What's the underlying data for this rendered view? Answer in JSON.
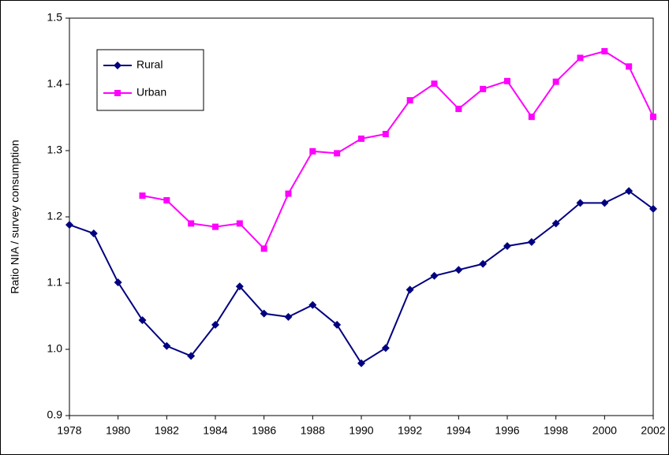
{
  "chart_data": {
    "type": "line",
    "ylabel": "Ratio NIA / survey consumption",
    "x": [
      1978,
      1979,
      1980,
      1981,
      1982,
      1983,
      1984,
      1985,
      1986,
      1987,
      1988,
      1989,
      1990,
      1991,
      1992,
      1993,
      1994,
      1995,
      1996,
      1997,
      1998,
      1999,
      2000,
      2001,
      2002
    ],
    "series": [
      {
        "name": "Rural",
        "color": "#000080",
        "marker": "diamond",
        "values": [
          1.188,
          1.175,
          1.101,
          1.044,
          1.005,
          0.99,
          1.037,
          1.095,
          1.054,
          1.049,
          1.067,
          1.037,
          0.979,
          1.002,
          1.09,
          1.111,
          1.12,
          1.129,
          1.156,
          1.162,
          1.19,
          1.221,
          1.221,
          1.239,
          1.212
        ]
      },
      {
        "name": "Urban",
        "color": "#ff00ff",
        "marker": "square",
        "values": [
          null,
          null,
          null,
          1.232,
          1.225,
          1.19,
          1.185,
          1.19,
          1.152,
          1.235,
          1.299,
          1.296,
          1.318,
          1.325,
          1.376,
          1.401,
          1.363,
          1.393,
          1.405,
          1.351,
          1.404,
          1.44,
          1.45,
          1.427,
          1.351
        ]
      }
    ],
    "xlim": [
      1978,
      2002
    ],
    "xticks": [
      1978,
      1980,
      1982,
      1984,
      1986,
      1988,
      1990,
      1992,
      1994,
      1996,
      1998,
      2000,
      2002
    ],
    "ylim": [
      0.9,
      1.5
    ],
    "yticks": [
      0.9,
      {
        "value": 1,
        "label": "1.0"
      },
      1.1,
      1.2,
      1.3,
      1.4,
      1.5
    ],
    "legend": "upper left"
  }
}
